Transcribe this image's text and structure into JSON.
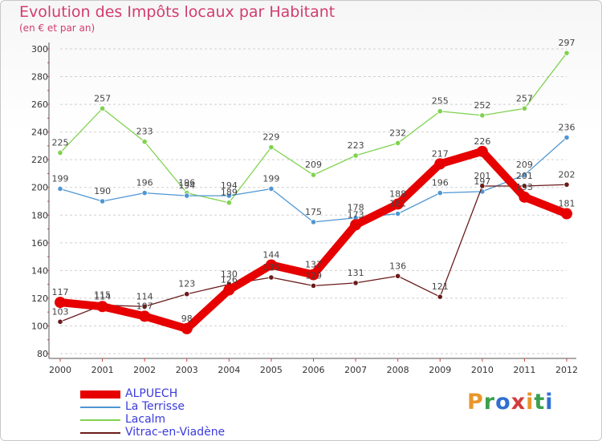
{
  "title": "Evolution des Impôts locaux par Habitant",
  "subtitle": "(en € et par an)",
  "brand": {
    "text": "Proxiti",
    "colors": [
      "#e8962c",
      "#3aa04c",
      "#2f6fd0",
      "#d23c3c",
      "#e8962c",
      "#3aa04c",
      "#2f6fd0"
    ]
  },
  "chart_data": {
    "type": "line",
    "title": "Evolution des Impôts locaux par Habitant",
    "subtitle": "(en € et par an)",
    "xlabel": "",
    "ylabel": "",
    "x": [
      "2000",
      "2001",
      "2002",
      "2003",
      "2004",
      "2005",
      "2006",
      "2007",
      "2008",
      "2009",
      "2010",
      "2011",
      "2012"
    ],
    "ylim": [
      80,
      300
    ],
    "yticks": [
      80,
      100,
      120,
      140,
      160,
      180,
      200,
      220,
      240,
      260,
      280,
      300
    ],
    "grid": "horizontal dashed",
    "legend_position": "bottom-left",
    "series": [
      {
        "name": "ALPUECH",
        "color": "#e60000",
        "values": [
          117,
          114,
          107,
          98,
          126,
          144,
          137,
          173,
          188,
          217,
          226,
          193,
          181
        ],
        "labels": [
          "117",
          "114",
          "107",
          "98",
          "126",
          "144",
          "137",
          "173",
          "188",
          "217",
          "226",
          "193",
          "181"
        ]
      },
      {
        "name": "La Terrisse",
        "color": "#4f96d2",
        "values": [
          199,
          190,
          196,
          194,
          194,
          199,
          175,
          178,
          181,
          196,
          197,
          209,
          236
        ],
        "labels": [
          "199",
          "190",
          "196",
          "194",
          "194",
          "199",
          "175",
          "178",
          "181",
          "196",
          "197",
          "209",
          "236"
        ]
      },
      {
        "name": "Lacalm",
        "color": "#7fd24f",
        "values": [
          225,
          257,
          233,
          196,
          189,
          229,
          209,
          223,
          232,
          255,
          252,
          257,
          297
        ],
        "labels": [
          "225",
          "257",
          "233",
          "196",
          "189",
          "229",
          "209",
          "223",
          "232",
          "255",
          "252",
          "257",
          "297"
        ]
      },
      {
        "name": "Vitrac-en-Viadène",
        "color": "#6b1b1b",
        "values": [
          103,
          115,
          114,
          123,
          130,
          135,
          129,
          131,
          136,
          121,
          201,
          201,
          202
        ],
        "labels": [
          "103",
          "115",
          "114",
          "123",
          "130",
          "135",
          "129",
          "131",
          "136",
          "121",
          "201",
          "201",
          "202"
        ]
      }
    ]
  }
}
